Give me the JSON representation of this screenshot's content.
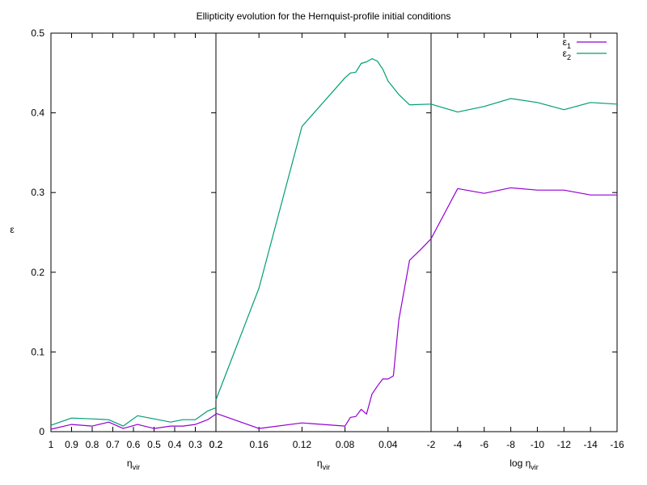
{
  "chart_data": {
    "type": "line",
    "title": "Ellipticity evolution for the Hernquist-profile initial conditions",
    "ylabel": "ε",
    "ylim": [
      0,
      0.5
    ],
    "yticks": [
      "0",
      "0.1",
      "0.2",
      "0.3",
      "0.4",
      "0.5"
    ],
    "legend_position": "top-right",
    "colors": {
      "e1": "#9400d3",
      "e2": "#009e73"
    },
    "panels": [
      {
        "xlabel": "η",
        "xlabel_sub": "vir",
        "xlim": [
          1.0,
          0.2
        ],
        "xticks": [
          "1",
          "0.9",
          "0.8",
          "0.7",
          "0.6",
          "0.5",
          "0.4",
          "0.3",
          "0.2"
        ],
        "xtick_values": [
          1.0,
          0.9,
          0.8,
          0.7,
          0.6,
          0.5,
          0.4,
          0.3,
          0.2
        ],
        "series": [
          {
            "name": "ε",
            "sub": "1",
            "key": "e1",
            "points": [
              [
                1.0,
                0.003
              ],
              [
                0.9,
                0.009
              ],
              [
                0.8,
                0.007
              ],
              [
                0.72,
                0.012
              ],
              [
                0.65,
                0.004
              ],
              [
                0.58,
                0.009
              ],
              [
                0.5,
                0.004
              ],
              [
                0.42,
                0.007
              ],
              [
                0.36,
                0.007
              ],
              [
                0.3,
                0.009
              ],
              [
                0.24,
                0.015
              ],
              [
                0.2,
                0.022
              ]
            ]
          },
          {
            "name": "ε",
            "sub": "2",
            "key": "e2",
            "points": [
              [
                1.0,
                0.008
              ],
              [
                0.9,
                0.017
              ],
              [
                0.8,
                0.016
              ],
              [
                0.72,
                0.015
              ],
              [
                0.65,
                0.007
              ],
              [
                0.58,
                0.02
              ],
              [
                0.5,
                0.016
              ],
              [
                0.42,
                0.012
              ],
              [
                0.36,
                0.015
              ],
              [
                0.3,
                0.015
              ],
              [
                0.24,
                0.026
              ],
              [
                0.2,
                0.03
              ]
            ]
          }
        ]
      },
      {
        "xlabel": "η",
        "xlabel_sub": "vir",
        "xlim": [
          0.2,
          0.0
        ],
        "xticks": [
          "0.2",
          "0.16",
          "0.12",
          "0.08",
          "0.04"
        ],
        "xtick_values": [
          0.2,
          0.16,
          0.12,
          0.08,
          0.04
        ],
        "series": [
          {
            "name": "ε",
            "sub": "1",
            "key": "e1",
            "points": [
              [
                0.2,
                0.023
              ],
              [
                0.16,
                0.004
              ],
              [
                0.12,
                0.011
              ],
              [
                0.08,
                0.007
              ],
              [
                0.075,
                0.018
              ],
              [
                0.07,
                0.019
              ],
              [
                0.065,
                0.028
              ],
              [
                0.06,
                0.022
              ],
              [
                0.055,
                0.047
              ],
              [
                0.05,
                0.057
              ],
              [
                0.045,
                0.066
              ],
              [
                0.04,
                0.066
              ],
              [
                0.035,
                0.07
              ],
              [
                0.03,
                0.14
              ],
              [
                0.02,
                0.215
              ],
              [
                0.01,
                0.228
              ],
              [
                0.0,
                0.242
              ]
            ]
          },
          {
            "name": "ε",
            "sub": "2",
            "key": "e2",
            "points": [
              [
                0.2,
                0.04
              ],
              [
                0.16,
                0.18
              ],
              [
                0.12,
                0.383
              ],
              [
                0.08,
                0.444
              ],
              [
                0.075,
                0.45
              ],
              [
                0.07,
                0.451
              ],
              [
                0.065,
                0.462
              ],
              [
                0.06,
                0.464
              ],
              [
                0.055,
                0.468
              ],
              [
                0.05,
                0.465
              ],
              [
                0.045,
                0.455
              ],
              [
                0.04,
                0.44
              ],
              [
                0.03,
                0.423
              ],
              [
                0.02,
                0.41
              ],
              [
                0.0,
                0.411
              ]
            ]
          }
        ]
      },
      {
        "xlabel": "log η",
        "xlabel_sub": "vir",
        "xlim": [
          -2,
          -16
        ],
        "xticks": [
          "-2",
          "-4",
          "-6",
          "-8",
          "-10",
          "-12",
          "-14",
          "-16"
        ],
        "xtick_values": [
          -2,
          -4,
          -6,
          -8,
          -10,
          -12,
          -14,
          -16
        ],
        "series": [
          {
            "name": "ε",
            "sub": "1",
            "key": "e1",
            "points": [
              [
                -2,
                0.242
              ],
              [
                -4,
                0.305
              ],
              [
                -6,
                0.299
              ],
              [
                -8,
                0.306
              ],
              [
                -10,
                0.303
              ],
              [
                -12,
                0.303
              ],
              [
                -14,
                0.297
              ],
              [
                -16,
                0.297
              ]
            ]
          },
          {
            "name": "ε",
            "sub": "2",
            "key": "e2",
            "points": [
              [
                -2,
                0.411
              ],
              [
                -4,
                0.401
              ],
              [
                -6,
                0.408
              ],
              [
                -8,
                0.418
              ],
              [
                -10,
                0.413
              ],
              [
                -12,
                0.404
              ],
              [
                -14,
                0.413
              ],
              [
                -16,
                0.411
              ]
            ]
          }
        ]
      }
    ],
    "legend": [
      {
        "name": "ε",
        "sub": "1",
        "key": "e1"
      },
      {
        "name": "ε",
        "sub": "2",
        "key": "e2"
      }
    ]
  }
}
